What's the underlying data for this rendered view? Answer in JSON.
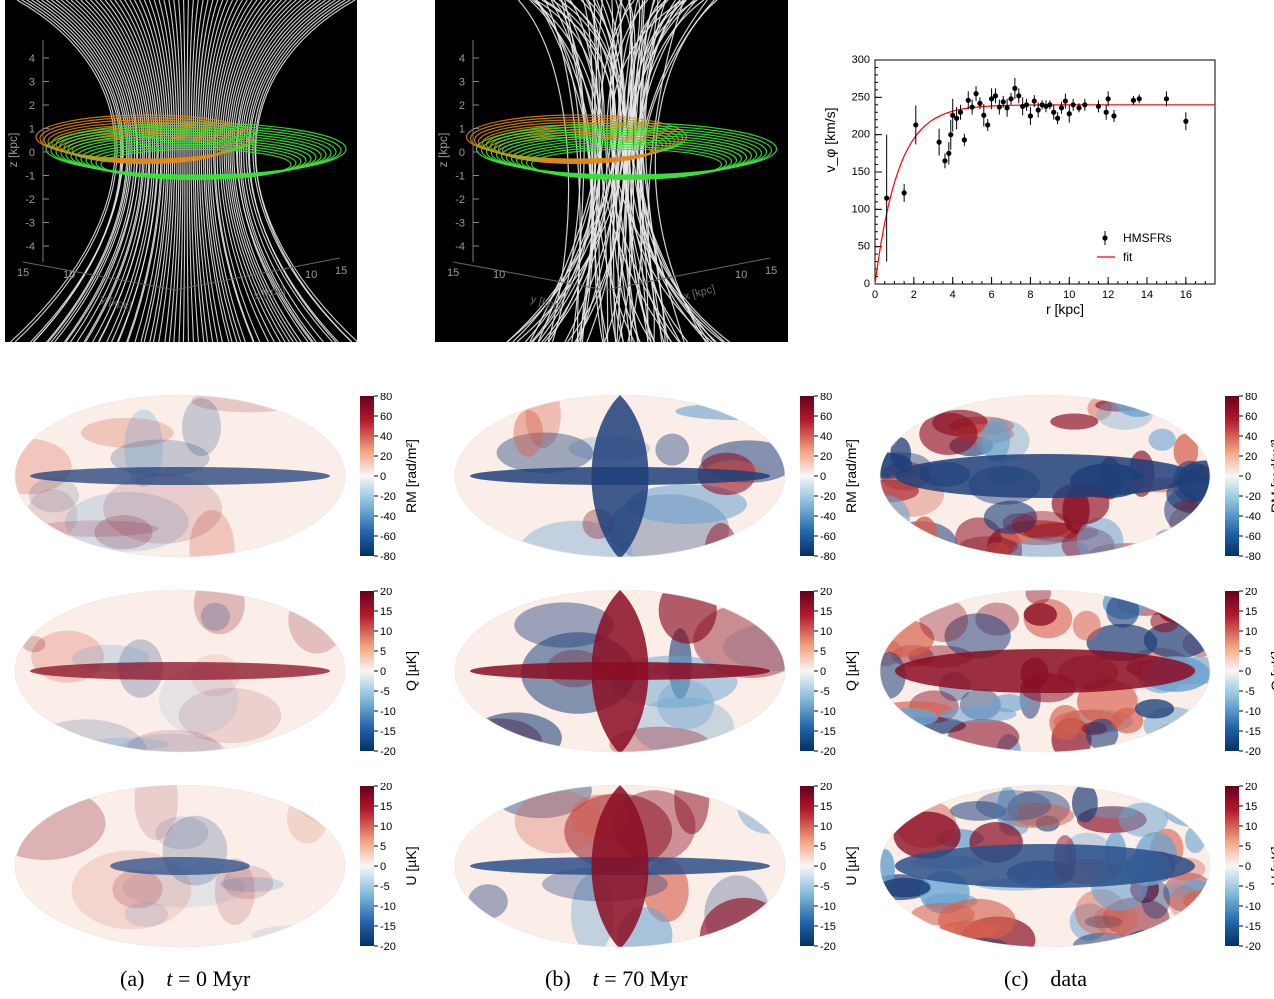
{
  "panels_3d": [
    {
      "id": "a",
      "axis_label_z": "z [kpc]",
      "axis_label_y": "y [kpc]",
      "axis_label_x": "x [kpc]",
      "z_ticks": [
        "4",
        "3",
        "2",
        "1",
        "0",
        "-1",
        "-2",
        "-3",
        "-4"
      ],
      "corner_ticks": [
        "15",
        "10",
        "10",
        "15"
      ]
    },
    {
      "id": "b",
      "axis_label_z": "z [kpc]",
      "axis_label_y": "y [kpc]",
      "axis_label_x": "x [kpc]",
      "z_ticks": [
        "4",
        "3",
        "2",
        "1",
        "0",
        "-1",
        "-2",
        "-3",
        "-4"
      ],
      "corner_ticks": [
        "15",
        "10",
        "10",
        "15"
      ]
    }
  ],
  "chart_data": {
    "type": "scatter",
    "xlabel": "r [kpc]",
    "ylabel": "v_φ [km/s]",
    "xlim": [
      0,
      17.5
    ],
    "ylim": [
      0,
      300
    ],
    "xticks": [
      0,
      2,
      4,
      6,
      8,
      10,
      12,
      14,
      16
    ],
    "yticks": [
      0,
      50,
      100,
      150,
      200,
      250,
      300
    ],
    "series": [
      {
        "name": "HMSFRs",
        "style": "points-errorbars",
        "color": "#000000",
        "points": [
          [
            0.6,
            115,
            85
          ],
          [
            1.5,
            122,
            12
          ],
          [
            2.1,
            213,
            26
          ],
          [
            3.3,
            190,
            18
          ],
          [
            3.6,
            165,
            10
          ],
          [
            3.8,
            175,
            15
          ],
          [
            3.9,
            200,
            20
          ],
          [
            4.0,
            226,
            22
          ],
          [
            4.2,
            222,
            15
          ],
          [
            4.4,
            230,
            10
          ],
          [
            4.6,
            193,
            8
          ],
          [
            4.8,
            246,
            12
          ],
          [
            5.0,
            237,
            10
          ],
          [
            5.2,
            255,
            10
          ],
          [
            5.4,
            242,
            8
          ],
          [
            5.6,
            226,
            15
          ],
          [
            5.8,
            213,
            8
          ],
          [
            6.0,
            248,
            14
          ],
          [
            6.2,
            252,
            10
          ],
          [
            6.4,
            237,
            10
          ],
          [
            6.6,
            244,
            8
          ],
          [
            6.8,
            236,
            12
          ],
          [
            7.0,
            248,
            8
          ],
          [
            7.2,
            262,
            14
          ],
          [
            7.4,
            252,
            10
          ],
          [
            7.6,
            238,
            12
          ],
          [
            7.8,
            240,
            8
          ],
          [
            8.0,
            225,
            12
          ],
          [
            8.2,
            245,
            8
          ],
          [
            8.4,
            233,
            10
          ],
          [
            8.6,
            240,
            6
          ],
          [
            8.8,
            238,
            8
          ],
          [
            9.0,
            240,
            6
          ],
          [
            9.2,
            230,
            10
          ],
          [
            9.4,
            222,
            8
          ],
          [
            9.6,
            236,
            8
          ],
          [
            9.8,
            245,
            10
          ],
          [
            10.0,
            228,
            12
          ],
          [
            10.2,
            240,
            8
          ],
          [
            10.5,
            236,
            6
          ],
          [
            10.8,
            240,
            8
          ],
          [
            11.5,
            238,
            8
          ],
          [
            11.9,
            230,
            10
          ],
          [
            12.0,
            248,
            10
          ],
          [
            12.3,
            225,
            8
          ],
          [
            13.3,
            246,
            6
          ],
          [
            13.6,
            248,
            6
          ],
          [
            15.0,
            248,
            10
          ],
          [
            16.0,
            218,
            12
          ]
        ]
      },
      {
        "name": "fit",
        "style": "line",
        "color": "#ff0000",
        "v0": 240,
        "scale": 1.2
      }
    ],
    "legend": {
      "position": "right-middle"
    }
  },
  "colorbar_ticks": {
    "RM": [
      "80",
      "60",
      "40",
      "20",
      "0",
      "-20",
      "-40",
      "-60",
      "-80"
    ],
    "QU": [
      "20",
      "15",
      "10",
      "5",
      "0",
      "-5",
      "-10",
      "-15",
      "-20"
    ]
  },
  "colorbar_labels": {
    "RM": "RM [rad/m²]",
    "Q": "Q [µK]",
    "U": "U [µK]"
  },
  "captions": [
    {
      "letter": "(a)",
      "t": "t",
      "rest": " = 0 Myr"
    },
    {
      "letter": "(b)",
      "t": "t",
      "rest": " = 70 Myr"
    },
    {
      "letter": "(c)",
      "text": "data"
    }
  ]
}
